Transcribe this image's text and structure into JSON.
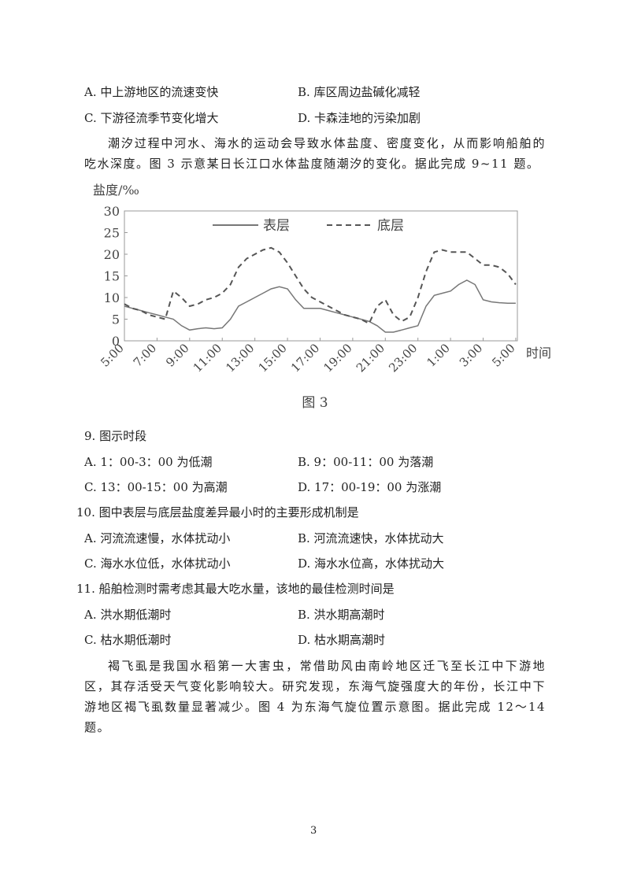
{
  "previous_options": [
    "A. 中上游地区的流速变快",
    "B. 库区周边盐碱化减轻",
    "C. 下游径流季节变化增大",
    "D. 卡森洼地的污染加剧"
  ],
  "passage_1": "潮汐过程中河水、海水的运动会导致水体盐度、密度变化，从而影响船舶的吃水深度。图 3 示意某日长江口水体盐度随潮汐的变化。据此完成 9~11 题。",
  "chart_data": {
    "type": "line",
    "y_label": "盐度/‰",
    "x_label": "时间",
    "caption": "图 3",
    "x": [
      0,
      0.5,
      1,
      1.5,
      2,
      2.5,
      3,
      3.5,
      4,
      4.5,
      5,
      5.5,
      6,
      6.5,
      7,
      7.5,
      8,
      8.5,
      9,
      9.5,
      10,
      10.5,
      11,
      11.5,
      12,
      12.5,
      13,
      13.5,
      14,
      14.5,
      15,
      15.5,
      16,
      16.5,
      17,
      17.5,
      18,
      18.5,
      19,
      19.5,
      20,
      20.5,
      21,
      21.5,
      22,
      22.5,
      23,
      23.5,
      24
    ],
    "series": [
      {
        "name": "表层",
        "color": "#777777",
        "line_style": "solid",
        "values": [
          8,
          7.5,
          7,
          6.5,
          6,
          5.5,
          5,
          3.5,
          2.5,
          2.8,
          3,
          2.8,
          3,
          5,
          8,
          9,
          10,
          11,
          12,
          12.5,
          12,
          9.5,
          7.5,
          7.5,
          7.5,
          7,
          6.5,
          6,
          5.5,
          5,
          4.5,
          3.5,
          2,
          2,
          2.5,
          3,
          3.5,
          8,
          10.5,
          11,
          11.5,
          13,
          14,
          13,
          9.5,
          9,
          8.8,
          8.7,
          8.7
        ]
      },
      {
        "name": "底层",
        "color": "#555555",
        "line_style": "dashed",
        "values": [
          8.5,
          7.5,
          7,
          6,
          5.5,
          5,
          11.5,
          10,
          8,
          8.5,
          9.5,
          10,
          11,
          13,
          17,
          19,
          20,
          21,
          21.5,
          20.5,
          18,
          15,
          12,
          10,
          9,
          8,
          7,
          6,
          5.5,
          5,
          4,
          8,
          9.5,
          6,
          4.5,
          5.5,
          10,
          16,
          20.5,
          21,
          20.5,
          20.5,
          20.5,
          19,
          17.5,
          17.5,
          17,
          15.5,
          13
        ]
      }
    ],
    "xlim": [
      0,
      24.1
    ],
    "xticks": [
      {
        "value": 0,
        "label": "5:00"
      },
      {
        "value": 2,
        "label": "7:00"
      },
      {
        "value": 4,
        "label": "9:00"
      },
      {
        "value": 6,
        "label": "11:00"
      },
      {
        "value": 8,
        "label": "13:00"
      },
      {
        "value": 10,
        "label": "15:00"
      },
      {
        "value": 12,
        "label": "17:00"
      },
      {
        "value": 14,
        "label": "19:00"
      },
      {
        "value": 16,
        "label": "21:00"
      },
      {
        "value": 18,
        "label": "23:00"
      },
      {
        "value": 20,
        "label": "1:00"
      },
      {
        "value": 22,
        "label": "3:00"
      },
      {
        "value": 24,
        "label": "5:00"
      }
    ],
    "ylim": [
      0,
      30
    ],
    "yticks": [
      0,
      5,
      10,
      15,
      20,
      25,
      30
    ],
    "legend": "top"
  },
  "questions": [
    {
      "stem": "9. 图示时段",
      "options": [
        "A. 1：00-3：00 为低潮",
        "B. 9：00-11：00 为落潮",
        "C. 13：00-15：00 为高潮",
        "D. 17：00-19：00 为涨潮"
      ]
    },
    {
      "stem": "10. 图中表层与底层盐度差异最小时的主要形成机制是",
      "options": [
        "A. 河流流速慢，水体扰动小",
        "B. 河流流速快，水体扰动大",
        "C. 海水水位低，水体扰动小",
        "D. 海水水位高，水体扰动大"
      ]
    },
    {
      "stem": "11. 船舶检测时需考虑其最大吃水量，该地的最佳检测时间是",
      "options": [
        "A. 洪水期低潮时",
        "B. 洪水期高潮时",
        "C. 枯水期低潮时",
        "D. 枯水期高潮时"
      ]
    }
  ],
  "passage_2": "褐飞虱是我国水稻第一大害虫，常借助风由南岭地区迁飞至长江中下游地区，其存活受天气变化影响较大。研究发现，东海气旋强度大的年份，长江中下游地区褐飞虱数量显著减少。图 4 为东海气旋位置示意图。据此完成 12～14 题。",
  "page_number": "3"
}
